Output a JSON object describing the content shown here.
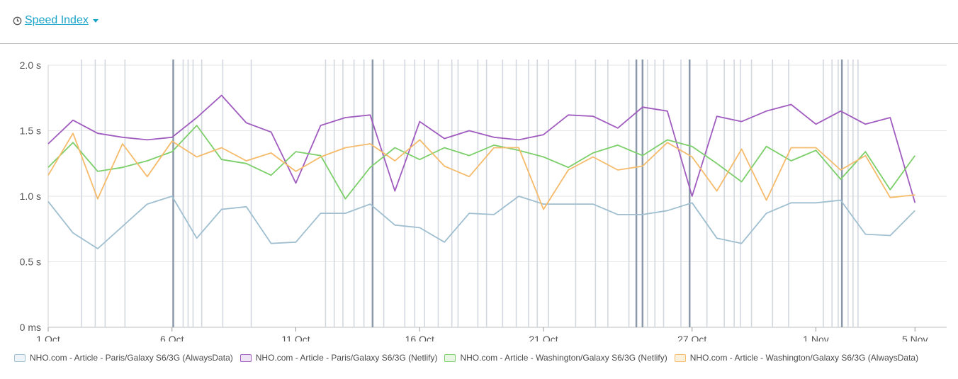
{
  "header": {
    "metric_label": "Speed Index"
  },
  "chart_data": {
    "type": "line",
    "x": [
      "1 Oct",
      "2 Oct",
      "3 Oct",
      "4 Oct",
      "5 Oct",
      "6 Oct",
      "7 Oct",
      "8 Oct",
      "9 Oct",
      "10 Oct",
      "11 Oct",
      "12 Oct",
      "13 Oct",
      "14 Oct",
      "15 Oct",
      "16 Oct",
      "17 Oct",
      "18 Oct",
      "19 Oct",
      "20 Oct",
      "21 Oct",
      "22 Oct",
      "23 Oct",
      "24 Oct",
      "25 Oct",
      "26 Oct",
      "27 Oct",
      "28 Oct",
      "29 Oct",
      "30 Oct",
      "31 Oct",
      "1 Nov",
      "2 Nov",
      "3 Nov",
      "4 Nov",
      "5 Nov"
    ],
    "x_ticks": [
      "1 Oct",
      "6 Oct",
      "11 Oct",
      "16 Oct",
      "21 Oct",
      "27 Oct",
      "1 Nov",
      "5 Nov"
    ],
    "y_ticks": [
      "0 ms",
      "0.5 s",
      "1.0 s",
      "1.5 s",
      "2.0 s"
    ],
    "ylim": [
      0,
      2.0
    ],
    "grid": true,
    "legend_position": "bottom",
    "series": [
      {
        "name": "NHO.com - Article - Paris/Galaxy S6/3G (AlwaysData)",
        "color": "#9fbfd0",
        "fill": "#eef4f8",
        "points": [
          [
            0,
            0.96
          ],
          [
            1,
            0.72
          ],
          [
            2,
            0.6
          ],
          [
            3,
            0.77
          ],
          [
            4,
            0.94
          ],
          [
            5,
            1.0
          ],
          [
            6,
            0.68
          ],
          [
            7,
            0.9
          ],
          [
            8,
            0.92
          ],
          [
            9,
            0.64
          ],
          [
            10,
            0.65
          ],
          [
            11,
            0.87
          ],
          [
            12,
            0.87
          ],
          [
            13,
            0.94
          ],
          [
            14,
            0.78
          ],
          [
            15,
            0.76
          ],
          [
            16,
            0.65
          ],
          [
            17,
            0.87
          ],
          [
            18,
            0.86
          ],
          [
            19,
            1.0
          ],
          [
            20,
            0.94
          ],
          [
            21,
            0.94
          ],
          [
            22,
            0.94
          ],
          [
            23,
            0.86
          ],
          [
            24,
            0.86
          ],
          [
            25,
            0.89
          ],
          [
            26,
            0.95
          ],
          [
            27,
            0.68
          ],
          [
            28,
            0.64
          ],
          [
            29,
            0.87
          ],
          [
            30,
            0.95
          ],
          [
            31,
            0.95
          ],
          [
            32,
            0.97
          ],
          [
            33,
            0.71
          ],
          [
            34,
            0.7
          ],
          [
            35,
            0.89
          ]
        ]
      },
      {
        "name": "NHO.com - Article - Paris/Galaxy S6/3G (Netlify)",
        "color": "#a05cbf",
        "fill": "#efe3f6",
        "points": [
          [
            0,
            1.4
          ],
          [
            1,
            1.58
          ],
          [
            2,
            1.48
          ],
          [
            3,
            1.45
          ],
          [
            4,
            1.43
          ],
          [
            5,
            1.45
          ],
          [
            6,
            1.6
          ],
          [
            7,
            1.77
          ],
          [
            8,
            1.56
          ],
          [
            9,
            1.49
          ],
          [
            10,
            1.1
          ],
          [
            11,
            1.54
          ],
          [
            12,
            1.6
          ],
          [
            13,
            1.62
          ],
          [
            14,
            1.04
          ],
          [
            15,
            1.57
          ],
          [
            16,
            1.44
          ],
          [
            17,
            1.5
          ],
          [
            18,
            1.45
          ],
          [
            19,
            1.43
          ],
          [
            20,
            1.47
          ],
          [
            21,
            1.62
          ],
          [
            22,
            1.61
          ],
          [
            23,
            1.52
          ],
          [
            24,
            1.68
          ],
          [
            25,
            1.65
          ],
          [
            26,
            1.0
          ],
          [
            27,
            1.61
          ],
          [
            28,
            1.57
          ],
          [
            29,
            1.65
          ],
          [
            30,
            1.7
          ],
          [
            31,
            1.55
          ],
          [
            32,
            1.65
          ],
          [
            33,
            1.55
          ],
          [
            34,
            1.6
          ],
          [
            35,
            0.95
          ]
        ]
      },
      {
        "name": "NHO.com - Article - Washington/Galaxy S6/3G (Netlify)",
        "color": "#7ccf6a",
        "fill": "#e8f6e3",
        "points": [
          [
            0,
            1.22
          ],
          [
            1,
            1.41
          ],
          [
            2,
            1.19
          ],
          [
            3,
            1.22
          ],
          [
            4,
            1.27
          ],
          [
            5,
            1.34
          ],
          [
            6,
            1.54
          ],
          [
            7,
            1.28
          ],
          [
            8,
            1.25
          ],
          [
            9,
            1.16
          ],
          [
            10,
            1.34
          ],
          [
            11,
            1.31
          ],
          [
            12,
            0.98
          ],
          [
            13,
            1.22
          ],
          [
            14,
            1.37
          ],
          [
            15,
            1.28
          ],
          [
            16,
            1.37
          ],
          [
            17,
            1.31
          ],
          [
            18,
            1.39
          ],
          [
            19,
            1.35
          ],
          [
            20,
            1.3
          ],
          [
            21,
            1.22
          ],
          [
            22,
            1.33
          ],
          [
            23,
            1.39
          ],
          [
            24,
            1.31
          ],
          [
            25,
            1.43
          ],
          [
            26,
            1.38
          ],
          [
            27,
            1.25
          ],
          [
            28,
            1.11
          ],
          [
            29,
            1.38
          ],
          [
            30,
            1.27
          ],
          [
            31,
            1.35
          ],
          [
            32,
            1.13
          ],
          [
            33,
            1.34
          ],
          [
            34,
            1.05
          ],
          [
            35,
            1.31
          ]
        ]
      },
      {
        "name": "NHO.com - Article - Washington/Galaxy S6/3G (AlwaysData)",
        "color": "#f5bb6b",
        "fill": "#fdf1de",
        "points": [
          [
            0,
            1.16
          ],
          [
            1,
            1.48
          ],
          [
            2,
            0.98
          ],
          [
            3,
            1.4
          ],
          [
            4,
            1.15
          ],
          [
            5,
            1.42
          ],
          [
            6,
            1.3
          ],
          [
            7,
            1.37
          ],
          [
            8,
            1.27
          ],
          [
            9,
            1.33
          ],
          [
            10,
            1.19
          ],
          [
            11,
            1.3
          ],
          [
            12,
            1.37
          ],
          [
            13,
            1.4
          ],
          [
            14,
            1.27
          ],
          [
            15,
            1.43
          ],
          [
            16,
            1.23
          ],
          [
            17,
            1.15
          ],
          [
            18,
            1.37
          ],
          [
            19,
            1.37
          ],
          [
            20,
            0.9
          ],
          [
            21,
            1.2
          ],
          [
            22,
            1.3
          ],
          [
            23,
            1.2
          ],
          [
            24,
            1.23
          ],
          [
            25,
            1.41
          ],
          [
            26,
            1.3
          ],
          [
            27,
            1.04
          ],
          [
            28,
            1.36
          ],
          [
            29,
            0.97
          ],
          [
            30,
            1.37
          ],
          [
            31,
            1.37
          ],
          [
            32,
            1.2
          ],
          [
            33,
            1.31
          ],
          [
            34,
            0.99
          ],
          [
            35,
            1.01
          ]
        ]
      }
    ],
    "annotation_markers": [
      {
        "x": 1.35,
        "dark": false
      },
      {
        "x": 1.9,
        "dark": false
      },
      {
        "x": 2.3,
        "dark": false
      },
      {
        "x": 3.1,
        "dark": false
      },
      {
        "x": 5.05,
        "dark": true
      },
      {
        "x": 5.45,
        "dark": false
      },
      {
        "x": 5.65,
        "dark": false
      },
      {
        "x": 5.85,
        "dark": false
      },
      {
        "x": 6.2,
        "dark": false
      },
      {
        "x": 7.05,
        "dark": false
      },
      {
        "x": 8.2,
        "dark": false
      },
      {
        "x": 11.2,
        "dark": false
      },
      {
        "x": 11.55,
        "dark": false
      },
      {
        "x": 11.9,
        "dark": false
      },
      {
        "x": 12.35,
        "dark": false
      },
      {
        "x": 12.75,
        "dark": false
      },
      {
        "x": 13.1,
        "dark": true
      },
      {
        "x": 13.55,
        "dark": false
      },
      {
        "x": 14.4,
        "dark": false
      },
      {
        "x": 14.8,
        "dark": false
      },
      {
        "x": 15.2,
        "dark": false
      },
      {
        "x": 15.75,
        "dark": false
      },
      {
        "x": 16.3,
        "dark": false
      },
      {
        "x": 16.55,
        "dark": false
      },
      {
        "x": 17.35,
        "dark": false
      },
      {
        "x": 17.7,
        "dark": false
      },
      {
        "x": 18.35,
        "dark": false
      },
      {
        "x": 18.9,
        "dark": false
      },
      {
        "x": 19.4,
        "dark": false
      },
      {
        "x": 19.75,
        "dark": false
      },
      {
        "x": 20.2,
        "dark": false
      },
      {
        "x": 21.3,
        "dark": false
      },
      {
        "x": 22.1,
        "dark": false
      },
      {
        "x": 22.6,
        "dark": false
      },
      {
        "x": 23.45,
        "dark": false
      },
      {
        "x": 23.75,
        "dark": true
      },
      {
        "x": 24.0,
        "dark": true
      },
      {
        "x": 24.2,
        "dark": false
      },
      {
        "x": 24.5,
        "dark": false
      },
      {
        "x": 24.85,
        "dark": false
      },
      {
        "x": 25.55,
        "dark": false
      },
      {
        "x": 25.9,
        "dark": true
      },
      {
        "x": 26.6,
        "dark": false
      },
      {
        "x": 27.3,
        "dark": false
      },
      {
        "x": 27.7,
        "dark": false
      },
      {
        "x": 27.95,
        "dark": false
      },
      {
        "x": 28.4,
        "dark": false
      },
      {
        "x": 29.25,
        "dark": false
      },
      {
        "x": 29.9,
        "dark": false
      },
      {
        "x": 31.3,
        "dark": false
      },
      {
        "x": 31.65,
        "dark": false
      },
      {
        "x": 31.9,
        "dark": false
      },
      {
        "x": 32.05,
        "dark": true
      },
      {
        "x": 32.3,
        "dark": false
      },
      {
        "x": 32.5,
        "dark": false
      },
      {
        "x": 32.7,
        "dark": false
      }
    ]
  }
}
